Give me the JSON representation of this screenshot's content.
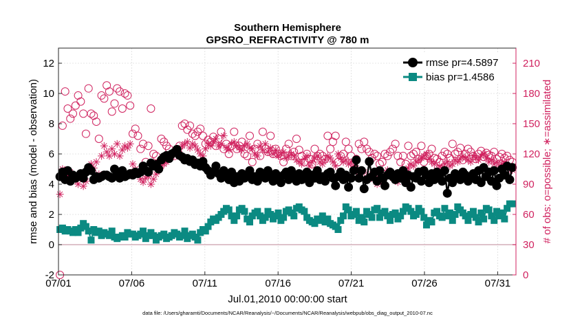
{
  "chart_data": {
    "type": "scatter",
    "title": "Southern Hemisphere",
    "subtitle": "GPSRO_REFRACTIVITY @ 780 m",
    "xlabel": "Jul.01,2010 00:00:00 start",
    "ylabel": "rmse and bias (model - observation)",
    "y2label": "# of obs: o=possible; ∗=assimilated",
    "footnote": "data file: /Users/gharamti/Documents/NCAR/Reanalysis/~/Documents/NCAR/Reanalysis/webpub/obs_diag_output_2010-07.nc",
    "xlim": [
      0,
      31.25
    ],
    "ylim": [
      -2,
      13
    ],
    "y2lim": [
      0,
      225
    ],
    "x_ticks": [
      0,
      5,
      10,
      15,
      20,
      25,
      30
    ],
    "x_tick_labels": [
      "07/01",
      "07/06",
      "07/11",
      "07/16",
      "07/21",
      "07/26",
      "07/31"
    ],
    "y_ticks": [
      -2,
      0,
      2,
      4,
      6,
      8,
      10,
      12
    ],
    "y_tick_labels": [
      "-2",
      "0",
      "2",
      "4",
      "6",
      "8",
      "10",
      "12"
    ],
    "y2_ticks": [
      0,
      30,
      60,
      90,
      120,
      150,
      180,
      210
    ],
    "y2_tick_labels": [
      "0",
      "30",
      "60",
      "90",
      "120",
      "150",
      "180",
      "210"
    ],
    "grid": true,
    "legend_position": "top-right",
    "colors": {
      "rmse": "#000000",
      "bias": "#0b8a82",
      "obs": "#d0225f",
      "zero_line": "#d4aeb8"
    },
    "series": [
      {
        "name": "rmse pr=4.5897",
        "axis": "left",
        "marker": "filled-circle-line",
        "values": [
          4.5,
          4.8,
          4.3,
          4.9,
          4.2,
          4.6,
          4.4,
          4.5,
          4.7,
          4.4,
          4.8,
          5.1,
          4.9,
          4.3,
          4.5,
          4.4,
          4.5,
          4.6,
          4.6,
          4.5,
          4.4,
          5.0,
          4.8,
          4.4,
          4.9,
          4.5,
          4.6,
          4.7,
          4.6,
          4.8,
          4.7,
          4.8,
          5.2,
          4.9,
          4.8,
          5.4,
          5.2,
          5.3,
          5.0,
          5.6,
          5.8,
          5.9,
          5.7,
          6.0,
          6.1,
          6.3,
          5.9,
          5.8,
          5.6,
          5.7,
          5.5,
          5.6,
          5.3,
          5.4,
          5.2,
          5.5,
          5.1,
          4.9,
          4.6,
          4.8,
          5.2,
          4.7,
          4.4,
          4.9,
          4.5,
          4.3,
          4.8,
          4.1,
          4.5,
          4.2,
          4.7,
          4.4,
          4.6,
          4.9,
          4.3,
          4.5,
          4.2,
          4.8,
          4.6,
          4.4,
          4.9,
          4.5,
          4.2,
          4.7,
          4.4,
          4.1,
          4.6,
          4.8,
          4.3,
          4.9,
          4.5,
          4.2,
          4.7,
          4.3,
          4.5,
          4.8,
          4.1,
          4.6,
          4.4,
          4.9,
          4.3,
          4.5,
          4.2,
          4.7,
          4.8,
          4.4,
          3.9,
          4.5,
          4.8,
          4.3,
          4.6,
          3.8,
          4.4,
          4.9,
          5.6,
          4.4,
          4.9,
          3.7,
          4.3,
          5.5,
          4.5,
          4.8,
          4.2,
          4.9,
          4.4,
          3.9,
          4.6,
          4.8,
          4.5,
          4.3,
          4.7,
          4.4,
          4.9,
          4.1,
          4.6,
          3.8,
          4.5,
          4.4,
          4.8,
          4.2,
          4.9,
          4.6,
          4.1,
          4.7,
          4.3,
          4.8,
          4.5,
          4.2,
          4.9,
          3.4,
          4.4,
          4.1,
          4.7,
          4.5,
          4.3,
          4.8,
          4.6,
          4.2,
          4.4,
          4.7,
          4.3,
          4.9,
          4.1,
          5.1,
          4.5,
          4.8,
          4.2,
          4.9,
          3.9,
          4.4,
          5.0,
          4.6,
          5.2,
          4.3,
          5.1
        ]
      },
      {
        "name": "bias pr=1.4586",
        "axis": "left",
        "marker": "filled-square-line",
        "values": [
          1.0,
          1.1,
          0.9,
          1.0,
          0.9,
          0.8,
          1.0,
          0.8,
          1.1,
          1.4,
          1.2,
          0.9,
          0.3,
          1.0,
          0.8,
          0.9,
          0.6,
          0.8,
          0.7,
          0.6,
          0.9,
          0.5,
          0.4,
          0.5,
          0.6,
          0.5,
          0.8,
          0.7,
          0.7,
          0.5,
          0.6,
          0.7,
          0.9,
          0.4,
          0.6,
          0.8,
          0.6,
          0.3,
          0.5,
          0.6,
          0.7,
          0.4,
          0.5,
          0.6,
          0.8,
          0.7,
          0.5,
          0.6,
          0.9,
          0.4,
          0.6,
          0.7,
          0.5,
          0.3,
          0.8,
          1.0,
          0.9,
          1.2,
          1.5,
          1.7,
          1.6,
          1.8,
          2.0,
          2.2,
          2.4,
          2.3,
          1.9,
          1.6,
          1.9,
          2.3,
          2.4,
          2.2,
          1.7,
          1.5,
          1.9,
          2.1,
          2.2,
          1.9,
          1.6,
          1.8,
          2.2,
          2.0,
          1.7,
          1.9,
          2.1,
          1.6,
          1.8,
          2.2,
          2.3,
          2.1,
          1.9,
          2.4,
          2.5,
          2.3,
          2.2,
          1.8,
          1.6,
          1.5,
          1.4,
          1.7,
          1.6,
          1.9,
          1.5,
          1.7,
          1.4,
          1.3,
          1.2,
          1.0,
          1.6,
          1.9,
          2.5,
          2.3,
          1.9,
          2.0,
          2.2,
          1.6,
          1.8,
          1.5,
          2.2,
          2.0,
          1.8,
          2.3,
          2.4,
          1.8,
          2.1,
          2.2,
          1.9,
          1.6,
          2.0,
          2.1,
          1.7,
          1.9,
          2.2,
          2.5,
          2.4,
          2.2,
          1.9,
          2.0,
          2.4,
          2.2,
          1.8,
          1.3,
          1.6,
          1.5,
          2.1,
          2.2,
          1.9,
          1.8,
          2.4,
          1.9,
          2.1,
          1.6,
          2.0,
          2.5,
          2.3,
          2.1,
          1.9,
          1.6,
          2.0,
          2.2,
          1.8,
          1.5,
          2.1,
          1.7,
          2.4,
          2.3,
          1.9,
          1.6,
          2.2,
          1.9,
          2.1,
          1.7,
          2.4,
          2.7,
          2.7
        ]
      },
      {
        "name": "possible",
        "axis": "right",
        "marker": "open-circle",
        "values": [
          0,
          148,
          182,
          165,
          155,
          160,
          168,
          178,
          172,
          160,
          140,
          185,
          160,
          158,
          152,
          135,
          178,
          175,
          188,
          182,
          162,
          170,
          185,
          182,
          165,
          180,
          178,
          168,
          140,
          145,
          138,
          125,
          130,
          112,
          128,
          165,
          120,
          118,
          110,
          135,
          132,
          128,
          125,
          120,
          118,
          122,
          128,
          148,
          150,
          144,
          148,
          140,
          138,
          142,
          145,
          138,
          130,
          134,
          132,
          137,
          128,
          135,
          142,
          125,
          130,
          120,
          128,
          142,
          125,
          128,
          132,
          120,
          118,
          138,
          112,
          125,
          130,
          118,
          142,
          125,
          122,
          138,
          120,
          125,
          120,
          118,
          112,
          125,
          130,
          118,
          122,
          135,
          124,
          118,
          112,
          120,
          115,
          110,
          125,
          118,
          120,
          118,
          115,
          138,
          125,
          132,
          138,
          112,
          118,
          120,
          132,
          125,
          118,
          110,
          115,
          130,
          125,
          132,
          125,
          122,
          116,
          120,
          118,
          110,
          112,
          120,
          118,
          122,
          125,
          130,
          118,
          112,
          118,
          110,
          128,
          118,
          120,
          122,
          115,
          128,
          112,
          118,
          120,
          125,
          116,
          115,
          112,
          118,
          122,
          120,
          116,
          130,
          120,
          122,
          126,
          114,
          120,
          125,
          122,
          118,
          115,
          120,
          123,
          117,
          121,
          119,
          118,
          122,
          115,
          117,
          120,
          116,
          118,
          114,
          112
        ]
      },
      {
        "name": "assimilated",
        "axis": "right",
        "marker": "asterisk",
        "values": [
          80,
          105,
          100,
          98,
          102,
          95,
          94,
          90,
          97,
          88,
          93,
          104,
          110,
          106,
          112,
          100,
          118,
          128,
          122,
          118,
          125,
          120,
          130,
          118,
          124,
          128,
          126,
          130,
          110,
          105,
          100,
          95,
          92,
          96,
          98,
          90,
          95,
          100,
          104,
          108,
          110,
          112,
          115,
          118,
          120,
          122,
          125,
          128,
          130,
          132,
          126,
          130,
          128,
          124,
          120,
          118,
          125,
          130,
          128,
          132,
          135,
          128,
          130,
          138,
          126,
          124,
          130,
          132,
          128,
          126,
          124,
          128,
          130,
          126,
          125,
          120,
          118,
          128,
          124,
          130,
          122,
          126,
          120,
          124,
          118,
          120,
          122,
          116,
          118,
          120,
          118,
          114,
          112,
          110,
          115,
          118,
          108,
          112,
          116,
          118,
          112,
          110,
          114,
          118,
          116,
          112,
          108,
          120,
          116,
          112,
          114,
          110,
          112,
          108,
          106,
          100,
          104,
          102,
          96,
          95,
          100,
          98,
          90,
          94,
          92,
          100,
          104,
          98,
          96,
          94,
          92,
          98,
          100,
          104,
          106,
          110,
          108,
          112,
          114,
          116,
          118,
          120,
          115,
          112,
          110,
          104,
          108,
          106,
          110,
          112,
          108,
          110,
          114,
          112,
          115,
          118,
          116,
          114,
          112,
          118,
          116,
          114,
          118,
          120,
          116,
          112,
          114,
          110,
          112,
          108,
          110,
          112,
          108,
          106,
          104
        ]
      }
    ]
  }
}
